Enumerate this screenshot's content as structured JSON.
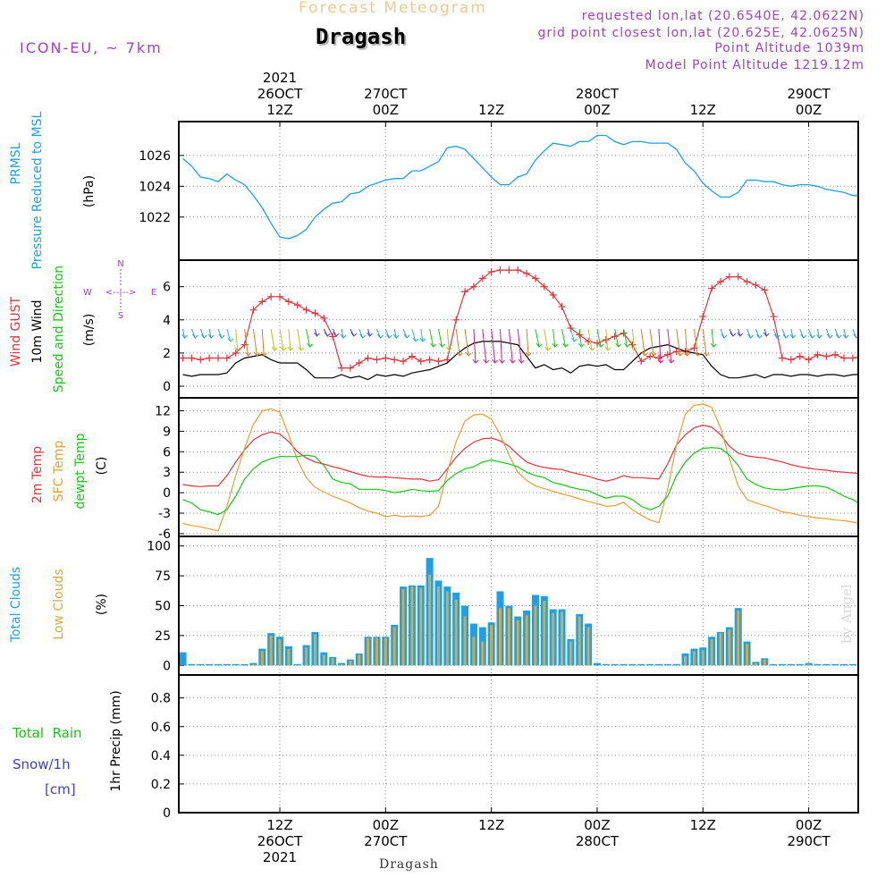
{
  "header": {
    "chart_kind": "Forecast Meteogram",
    "location": "Dragash",
    "model": "ICON-EU, ~ 7km",
    "requested_lonlat": "requested lon,lat (20.6540E, 42.0622N)",
    "grid_lonlat": "grid point closest lon,lat (20.625E, 42.0625N)",
    "point_altitude": "Point Altitude 1039m",
    "model_altitude": "Model Point Altitude 1219.12m",
    "footer_location": "Dragash",
    "watermark": "by Angel"
  },
  "colors": {
    "pressure": "#1ea0e6",
    "gust": "#e8323c",
    "wind": "#000000",
    "wind_label_green": "#14c814",
    "temp2m": "#e8323c",
    "sfc": "#e6a032",
    "dew": "#14c814",
    "total_clouds": "#1ea0e6",
    "low_clouds": "#d4aa46",
    "rain": "#14c814",
    "snow": "#3c3cdc",
    "purple": "#a040c8"
  },
  "chart_data": [
    {
      "type": "line",
      "id": "pressure",
      "series": [
        {
          "name": "PRMSL",
          "values": [
            1025.8,
            1025.3,
            1024.6,
            1024.5,
            1024.3,
            1024.8,
            1024.4,
            1024.1,
            1023.4,
            1022.6,
            1021.6,
            1020.7,
            1020.6,
            1020.8,
            1021.2,
            1022.0,
            1022.5,
            1022.9,
            1023.0,
            1023.5,
            1023.6,
            1024.0,
            1024.2,
            1024.4,
            1024.5,
            1024.5,
            1025.0,
            1025.0,
            1025.3,
            1025.6,
            1026.5,
            1026.6,
            1026.4,
            1025.8,
            1025.2,
            1024.6,
            1024.1,
            1024.1,
            1024.6,
            1024.8,
            1025.7,
            1026.3,
            1026.8,
            1026.7,
            1026.6,
            1026.9,
            1026.9,
            1027.3,
            1027.3,
            1026.9,
            1026.7,
            1026.9,
            1026.9,
            1026.8,
            1026.8,
            1026.8,
            1026.4,
            1025.5,
            1025.0,
            1024.2,
            1023.7,
            1023.3,
            1023.3,
            1023.6,
            1024.4,
            1024.4,
            1024.3,
            1024.3,
            1024.1,
            1024.0,
            1024.1,
            1024.1,
            1024.0,
            1023.8,
            1023.7,
            1023.6,
            1023.4,
            1023.4
          ]
        }
      ],
      "ylabel": "(hPa)",
      "title_lines": [
        "PRMSL",
        "Pressure Reduced to MSL"
      ],
      "yticks": [
        1022,
        1024,
        1026
      ],
      "ylim": [
        1019.2,
        1028.2
      ]
    },
    {
      "type": "line",
      "id": "wind",
      "series": [
        {
          "name": "Wind GUST",
          "values": [
            1.7,
            1.7,
            1.6,
            1.7,
            1.7,
            1.7,
            2.0,
            2.5,
            4.6,
            5.1,
            5.4,
            5.4,
            5.1,
            4.9,
            4.6,
            4.4,
            4.1,
            3.0,
            1.1,
            1.1,
            1.4,
            1.7,
            1.6,
            1.7,
            1.6,
            1.5,
            1.8,
            1.5,
            1.6,
            1.5,
            1.6,
            4.0,
            5.7,
            6.0,
            6.5,
            6.9,
            7.0,
            7.0,
            7.0,
            6.8,
            6.5,
            6.0,
            5.5,
            4.8,
            3.5,
            3.1,
            2.7,
            2.6,
            2.8,
            3.0,
            3.2,
            2.5,
            1.5,
            1.8,
            1.7,
            1.9,
            2.1,
            2.1,
            2.3,
            4.2,
            5.9,
            6.3,
            6.6,
            6.6,
            6.3,
            6.1,
            5.8,
            4.2,
            1.7,
            1.6,
            1.8,
            1.6,
            1.9,
            1.8,
            1.9,
            1.7,
            1.7,
            1.8
          ]
        },
        {
          "name": "10m Wind",
          "values": [
            0.7,
            0.6,
            0.7,
            0.7,
            0.7,
            0.8,
            1.4,
            1.7,
            1.8,
            1.9,
            1.6,
            1.4,
            1.4,
            1.4,
            1.0,
            0.5,
            0.5,
            0.5,
            0.7,
            0.5,
            0.6,
            0.4,
            0.7,
            0.6,
            0.7,
            0.6,
            0.8,
            0.9,
            1.0,
            1.2,
            1.4,
            1.9,
            2.3,
            2.6,
            2.7,
            2.7,
            2.7,
            2.6,
            2.5,
            1.8,
            1.1,
            1.3,
            1.0,
            1.1,
            0.8,
            1.2,
            1.3,
            1.2,
            1.3,
            1.0,
            1.0,
            1.5,
            2.0,
            2.3,
            2.4,
            2.5,
            2.3,
            2.1,
            2.0,
            1.9,
            1.2,
            0.7,
            0.5,
            0.5,
            0.6,
            0.7,
            0.5,
            0.7,
            0.7,
            0.6,
            0.7,
            0.7,
            0.6,
            0.7,
            0.7,
            0.6,
            0.7,
            0.7
          ]
        }
      ],
      "ylabel": "(m/s)",
      "title_lines": [
        "Wind GUST",
        "10m Wind",
        "Speed and Direction"
      ],
      "compass": {
        "n": "N",
        "s": "S",
        "w": "W",
        "e": "E",
        "arrow": "<--|-->"
      },
      "yticks": [
        0,
        2,
        4,
        6
      ],
      "ylim": [
        -0.7,
        7.6
      ]
    },
    {
      "type": "line",
      "id": "temp",
      "series": [
        {
          "name": "2m Temp",
          "values": [
            1.2,
            1.0,
            0.9,
            1.0,
            1.0,
            2.5,
            4.5,
            6.3,
            7.7,
            8.5,
            8.9,
            8.6,
            7.5,
            6.0,
            5.1,
            4.5,
            4.2,
            3.8,
            3.5,
            3.1,
            2.7,
            2.4,
            2.3,
            2.3,
            2.2,
            2.1,
            2.0,
            2.0,
            1.7,
            1.9,
            3.5,
            5.2,
            6.5,
            7.4,
            7.9,
            8.0,
            7.6,
            6.8,
            5.6,
            4.5,
            4.0,
            3.7,
            3.5,
            3.4,
            3.0,
            2.7,
            2.4,
            2.0,
            1.7,
            2.0,
            2.5,
            2.2,
            2.2,
            2.1,
            2.0,
            4.2,
            7.0,
            8.5,
            9.5,
            9.9,
            9.6,
            8.5,
            6.8,
            5.8,
            5.4,
            5.2,
            5.1,
            4.8,
            4.5,
            4.1,
            3.8,
            3.6,
            3.4,
            3.3,
            3.1,
            3.0,
            2.9,
            2.8
          ]
        },
        {
          "name": "SFC Temp",
          "values": [
            -4.5,
            -4.8,
            -5.0,
            -5.3,
            -5.6,
            -2.0,
            2.5,
            6.5,
            10.0,
            12.0,
            12.3,
            11.8,
            8.5,
            4.8,
            2.2,
            0.8,
            0.1,
            -0.5,
            -1.0,
            -1.5,
            -2.2,
            -2.7,
            -3.0,
            -3.5,
            -3.3,
            -3.5,
            -3.4,
            -3.5,
            -3.3,
            -2.0,
            3.0,
            7.5,
            10.5,
            11.4,
            11.5,
            10.8,
            8.5,
            5.5,
            3.0,
            1.8,
            1.0,
            0.6,
            0.2,
            -0.2,
            -0.5,
            -0.9,
            -1.3,
            -1.6,
            -2.0,
            -1.9,
            -1.4,
            -2.5,
            -3.3,
            -4.0,
            -4.4,
            0.5,
            7.0,
            11.5,
            12.8,
            13.0,
            12.5,
            9.5,
            5.0,
            1.0,
            -1.0,
            -1.5,
            -1.9,
            -2.3,
            -2.8,
            -3.0,
            -3.3,
            -3.5,
            -3.7,
            -3.8,
            -4.0,
            -4.1,
            -4.3,
            -4.6
          ]
        },
        {
          "name": "dewpt Temp",
          "values": [
            -1.0,
            -1.5,
            -2.5,
            -2.8,
            -3.2,
            -2.5,
            -0.5,
            2.0,
            3.5,
            4.5,
            5.0,
            5.3,
            5.3,
            5.3,
            5.5,
            5.3,
            4.0,
            2.0,
            1.5,
            1.3,
            0.5,
            0.5,
            0.5,
            0.3,
            0.0,
            0.2,
            0.5,
            0.3,
            0.2,
            0.3,
            1.8,
            2.8,
            3.5,
            3.8,
            4.5,
            4.8,
            4.5,
            4.2,
            3.8,
            3.0,
            2.5,
            2.2,
            1.5,
            1.2,
            0.8,
            0.5,
            0.3,
            -0.3,
            -0.8,
            -0.5,
            -0.5,
            -1.0,
            -2.0,
            -2.5,
            -2.0,
            -0.5,
            2.5,
            4.5,
            5.8,
            6.5,
            6.6,
            6.5,
            5.5,
            4.0,
            2.0,
            1.2,
            0.7,
            0.5,
            0.4,
            0.6,
            0.8,
            1.0,
            1.0,
            0.8,
            0.2,
            -0.5,
            -1.0,
            -1.8
          ]
        }
      ],
      "ylabel": "(C)",
      "title_lines": [
        "2m Temp",
        "SFC Temp",
        "dewpt Temp"
      ],
      "yticks": [
        -6,
        -3,
        0,
        3,
        6,
        9,
        12
      ],
      "ylim": [
        -6.4,
        13.9
      ]
    },
    {
      "type": "bar",
      "id": "clouds",
      "series": [
        {
          "name": "Total Clouds",
          "values": [
            11,
            0,
            0,
            0,
            0,
            0,
            0,
            0,
            2,
            14,
            27,
            24,
            16,
            0,
            17,
            28,
            11,
            7,
            2,
            5,
            10,
            24,
            24,
            24,
            34,
            66,
            67,
            67,
            90,
            71,
            66,
            61,
            50,
            35,
            32,
            36,
            62,
            50,
            41,
            46,
            59,
            58,
            47,
            47,
            22,
            43,
            35,
            2,
            0,
            0,
            0,
            0,
            0,
            0,
            0,
            0,
            0,
            10,
            14,
            15,
            24,
            28,
            32,
            48,
            20,
            3,
            6,
            1,
            0,
            0,
            0,
            2,
            1,
            0,
            0,
            0,
            0,
            1
          ]
        },
        {
          "name": "Low Clouds",
          "values": [
            0,
            0,
            0,
            0,
            0,
            0,
            0,
            0,
            1,
            12,
            25,
            22,
            14,
            0,
            15,
            26,
            9,
            6,
            1,
            4,
            9,
            23,
            23,
            23,
            32,
            64,
            66,
            65,
            76,
            66,
            62,
            55,
            41,
            24,
            20,
            34,
            48,
            48,
            38,
            42,
            50,
            54,
            44,
            45,
            20,
            41,
            32,
            0,
            0,
            0,
            0,
            0,
            0,
            0,
            0,
            0,
            0,
            8,
            12,
            13,
            22,
            27,
            30,
            46,
            18,
            2,
            5,
            0,
            0,
            0,
            0,
            1,
            0,
            0,
            0,
            0,
            0,
            0
          ]
        }
      ],
      "ylabel": "(%)",
      "title_lines": [
        "Total Clouds",
        "Low Clouds"
      ],
      "yticks": [
        0,
        25,
        50,
        75,
        100
      ],
      "ylim": [
        -8,
        108
      ]
    },
    {
      "type": "bar",
      "id": "precip",
      "series": [
        {
          "name": "Total Rain",
          "values": [
            0,
            0,
            0,
            0,
            0,
            0,
            0,
            0,
            0,
            0,
            0,
            0,
            0,
            0,
            0,
            0,
            0,
            0,
            0,
            0,
            0,
            0,
            0,
            0,
            0,
            0,
            0,
            0,
            0,
            0,
            0,
            0,
            0,
            0,
            0,
            0,
            0,
            0,
            0,
            0,
            0,
            0,
            0,
            0,
            0,
            0,
            0,
            0,
            0,
            0,
            0,
            0,
            0,
            0,
            0,
            0,
            0,
            0,
            0,
            0,
            0,
            0,
            0,
            0,
            0,
            0,
            0,
            0,
            0,
            0,
            0,
            0,
            0,
            0,
            0,
            0,
            0,
            0
          ]
        },
        {
          "name": "Snow/1h",
          "values": [
            0,
            0,
            0,
            0,
            0,
            0,
            0,
            0,
            0,
            0,
            0,
            0,
            0,
            0,
            0,
            0,
            0,
            0,
            0,
            0,
            0,
            0,
            0,
            0,
            0,
            0,
            0,
            0,
            0,
            0,
            0,
            0,
            0,
            0,
            0,
            0,
            0,
            0,
            0,
            0,
            0,
            0,
            0,
            0,
            0,
            0,
            0,
            0,
            0,
            0,
            0,
            0,
            0,
            0,
            0,
            0,
            0,
            0,
            0,
            0,
            0,
            0,
            0,
            0,
            0,
            0,
            0,
            0,
            0,
            0,
            0,
            0,
            0,
            0,
            0,
            0,
            0,
            0
          ]
        }
      ],
      "ylabel": "1hr Precip (mm)",
      "title_lines": [
        "Total  Rain",
        "Snow/1h",
        "[cm]"
      ],
      "yticks": [
        "0",
        "0.2",
        "0.4",
        "0.6",
        "0.8"
      ],
      "ylim": [
        0,
        0.96
      ]
    }
  ],
  "time_axis": {
    "step_hours": 1,
    "first_hour_offset": -11,
    "ticks": [
      {
        "hour": 0,
        "top": [
          "2021",
          "26OCT",
          "12Z"
        ],
        "bottom": [
          "12Z",
          "26OCT",
          "2021"
        ]
      },
      {
        "hour": 12,
        "top": [
          "270CT",
          "00Z"
        ],
        "bottom": [
          "00Z",
          "270CT"
        ]
      },
      {
        "hour": 24,
        "top": [
          "12Z"
        ],
        "bottom": [
          "12Z"
        ]
      },
      {
        "hour": 36,
        "top": [
          "280CT",
          "00Z"
        ],
        "bottom": [
          "00Z",
          "280CT"
        ]
      },
      {
        "hour": 48,
        "top": [
          "12Z"
        ],
        "bottom": [
          "12Z"
        ]
      },
      {
        "hour": 60,
        "top": [
          "290CT",
          "00Z"
        ],
        "bottom": [
          "00Z",
          "290CT"
        ]
      }
    ]
  }
}
